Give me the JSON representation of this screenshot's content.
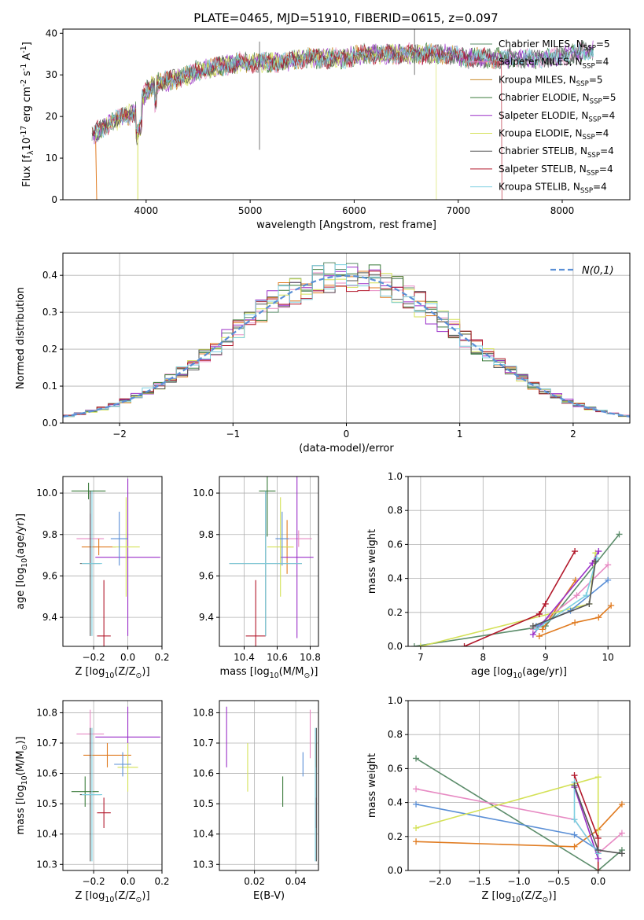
{
  "title": "PLATE=0465, MJD=51910, FIBERID=0615, z=0.097",
  "chart_data": [
    {
      "type": "line",
      "panel": "spectrum",
      "xlabel": "wavelength [Angstrom, rest frame]",
      "ylabel": "Flux [f$_\\lambda$10$^{-17}$ erg cm$^{-2}$ s$^{-1}$ A$^{-1}$]",
      "xlim": [
        3200,
        8650
      ],
      "ylim": [
        0,
        41
      ],
      "xticks": [
        4000,
        5000,
        6000,
        7000,
        8000
      ],
      "yticks": [
        0,
        10,
        20,
        30,
        40
      ],
      "legend_position": "upper-right",
      "series": [
        {
          "name": "Chabrier MILES, N$_{SSP}$=5",
          "color": "#5b8c6a"
        },
        {
          "name": "Salpeter MILES, N$_{SSP}$=4",
          "color": "#e78ac3"
        },
        {
          "name": "Kroupa MILES, N$_{SSP}$=5",
          "color": "#c98b2a"
        },
        {
          "name": "Chabrier ELODIE, N$_{SSP}$=5",
          "color": "#3a7a3a"
        },
        {
          "name": "Salpeter ELODIE, N$_{SSP}$=4",
          "color": "#9a2fc8"
        },
        {
          "name": "Kroupa ELODIE, N$_{SSP}$=4",
          "color": "#d4e157"
        },
        {
          "name": "Chabrier STELIB, N$_{SSP}$=4",
          "color": "#555555"
        },
        {
          "name": "Salpeter STELIB, N$_{SSP}$=4",
          "color": "#b2182b"
        },
        {
          "name": "Kroupa STELIB, N$_{SSP}$=4",
          "color": "#7ccfe0"
        }
      ],
      "spectrum_trend": {
        "x": [
          3500,
          3700,
          3900,
          4000,
          4100,
          4300,
          4500,
          4700,
          4900,
          5100,
          5300,
          5500,
          5700,
          5900,
          6100,
          6300,
          6500,
          6700,
          6900,
          7100,
          7300,
          7500,
          7700,
          7900,
          8100,
          8300
        ],
        "y": [
          16,
          19,
          21,
          26,
          28,
          29,
          31,
          32,
          33,
          33,
          33,
          34,
          34,
          34,
          35,
          35,
          35,
          35,
          35,
          34,
          34,
          34,
          34,
          34,
          35,
          36
        ]
      }
    },
    {
      "type": "histogram",
      "panel": "residuals",
      "xlabel": "(data-model)/error",
      "ylabel": "Normed distribution",
      "xlim": [
        -2.5,
        2.5
      ],
      "ylim": [
        0,
        0.46
      ],
      "xticks": [
        -2,
        -1,
        0,
        1,
        2
      ],
      "yticks": [
        0.0,
        0.1,
        0.2,
        0.3,
        0.4
      ],
      "grid": true,
      "legend_position": "upper-right",
      "reference_curve": {
        "name": "$\\mathcal{N}(0,1)$",
        "color": "#5a8fd6",
        "style": "dashed"
      },
      "bin_width": 0.1,
      "series_colors": [
        "#5b8c6a",
        "#e78ac3",
        "#e07b20",
        "#3a7a3a",
        "#9a2fc8",
        "#d4e157",
        "#555555",
        "#b2182b",
        "#7ccfe0"
      ]
    },
    {
      "type": "scatter",
      "panel": "age-vs-Z",
      "xlabel": "Z [log$_{10}$($Z/Z_\\odot$)]",
      "ylabel": "age  [log$_{10}$($age/yr$)]",
      "xlim": [
        -0.38,
        0.2
      ],
      "ylim": [
        9.26,
        10.08
      ],
      "xticks": [
        -0.2,
        0.0,
        0.2
      ],
      "yticks": [
        9.4,
        9.6,
        9.8,
        10.0
      ],
      "grid": true,
      "points": [
        {
          "x": -0.23,
          "y": 10.01,
          "xerr": 0.1,
          "yerr": 0.04,
          "color": "#3a7a3a"
        },
        {
          "x": -0.22,
          "y": 9.78,
          "xerr": 0.08,
          "yerr": 0.12,
          "color": "#e78ac3"
        },
        {
          "x": -0.17,
          "y": 9.74,
          "xerr": 0.1,
          "yerr": 0.04,
          "color": "#e07b20"
        },
        {
          "x": -0.14,
          "y": 9.31,
          "xerr": 0.04,
          "yerr": 0.27,
          "color": "#b2182b"
        },
        {
          "x": 0.0,
          "y": 9.69,
          "xerr": 0.19,
          "yerr": 0.38,
          "color": "#9a2fc8"
        },
        {
          "x": -0.01,
          "y": 9.74,
          "xerr": 0.08,
          "yerr": 0.24,
          "color": "#d4e157"
        },
        {
          "x": -0.05,
          "y": 9.78,
          "xerr": 0.05,
          "yerr": 0.13,
          "color": "#5a8fd6"
        },
        {
          "x": -0.22,
          "y": 9.66,
          "xerr": 0.06,
          "yerr": 0.35,
          "color": "#555555"
        },
        {
          "x": -0.21,
          "y": 9.66,
          "xerr": 0.06,
          "yerr": 0.35,
          "color": "#7ccfe0"
        }
      ]
    },
    {
      "type": "scatter",
      "panel": "age-vs-mass",
      "xlabel": "mass [log$_{10}$($M/M_\\odot$)]",
      "ylabel": "",
      "xlim": [
        10.25,
        10.85
      ],
      "ylim": [
        9.26,
        10.08
      ],
      "xticks": [
        10.4,
        10.6,
        10.8
      ],
      "yticks": [
        9.4,
        9.6,
        9.8,
        10.0
      ],
      "grid": true,
      "points": [
        {
          "x": 10.54,
          "y": 10.01,
          "xerr": 0.05,
          "yerr": 0.22,
          "color": "#3a7a3a"
        },
        {
          "x": 10.73,
          "y": 9.78,
          "xerr": 0.08,
          "yerr": 0.04,
          "color": "#e78ac3"
        },
        {
          "x": 10.66,
          "y": 9.74,
          "xerr": 0.04,
          "yerr": 0.13,
          "color": "#e07b20"
        },
        {
          "x": 10.47,
          "y": 9.31,
          "xerr": 0.06,
          "yerr": 0.27,
          "color": "#b2182b"
        },
        {
          "x": 10.72,
          "y": 9.69,
          "xerr": 0.1,
          "yerr": 0.39,
          "color": "#9a2fc8"
        },
        {
          "x": 10.62,
          "y": 9.74,
          "xerr": 0.08,
          "yerr": 0.24,
          "color": "#d4e157"
        },
        {
          "x": 10.63,
          "y": 9.78,
          "xerr": 0.04,
          "yerr": 0.13,
          "color": "#5a8fd6"
        },
        {
          "x": 10.53,
          "y": 9.66,
          "xerr": 0.22,
          "yerr": 0.35,
          "color": "#555555"
        },
        {
          "x": 10.53,
          "y": 9.66,
          "xerr": 0.22,
          "yerr": 0.35,
          "color": "#7ccfe0"
        }
      ]
    },
    {
      "type": "line",
      "panel": "massweight-vs-age",
      "xlabel": "age  [log$_{10}$($age/yr$)]",
      "ylabel": "mass weight",
      "xlim": [
        6.8,
        10.35
      ],
      "ylim": [
        0,
        1.0
      ],
      "xticks": [
        7,
        8,
        9,
        10
      ],
      "yticks": [
        0.0,
        0.2,
        0.4,
        0.6,
        0.8,
        1.0
      ],
      "grid": true,
      "series": [
        {
          "color": "#5b8c6a",
          "x": [
            6.9,
            9.0,
            10.18
          ],
          "y": [
            0.0,
            0.12,
            0.66
          ]
        },
        {
          "color": "#e78ac3",
          "x": [
            8.8,
            9.5,
            10.0
          ],
          "y": [
            0.1,
            0.3,
            0.48
          ]
        },
        {
          "color": "#e07b20",
          "x": [
            8.9,
            9.47,
            9.85,
            10.05
          ],
          "y": [
            0.06,
            0.14,
            0.17,
            0.24
          ]
        },
        {
          "color": "#e07b20",
          "x": [
            8.95,
            9.48
          ],
          "y": [
            0.1,
            0.39
          ]
        },
        {
          "color": "#d4e157",
          "x": [
            7.0,
            9.7,
            9.8
          ],
          "y": [
            0.0,
            0.25,
            0.55
          ]
        },
        {
          "color": "#5a8fd6",
          "x": [
            8.85,
            9.4,
            10.0
          ],
          "y": [
            0.12,
            0.21,
            0.39
          ]
        },
        {
          "color": "#9a2fc8",
          "x": [
            8.8,
            9.75,
            9.85
          ],
          "y": [
            0.07,
            0.49,
            0.56
          ]
        },
        {
          "color": "#b2182b",
          "x": [
            7.7,
            8.9,
            9.47
          ],
          "y": [
            0.0,
            0.19,
            0.56
          ]
        },
        {
          "color": "#b2182b",
          "x": [
            8.9,
            9.0
          ],
          "y": [
            0.19,
            0.25
          ]
        },
        {
          "color": "#7ccfe0",
          "x": [
            8.85,
            9.65,
            9.82
          ],
          "y": [
            0.1,
            0.3,
            0.52
          ]
        },
        {
          "color": "#555555",
          "x": [
            8.8,
            9.7,
            9.8
          ],
          "y": [
            0.12,
            0.25,
            0.5
          ]
        }
      ]
    },
    {
      "type": "scatter",
      "panel": "mass-vs-Z",
      "xlabel": "Z [log$_{10}$($Z/Z_\\odot$)]",
      "ylabel": "mass [log$_{10}$($M/M_\\odot$)]",
      "xlim": [
        -0.38,
        0.2
      ],
      "ylim": [
        10.28,
        10.84
      ],
      "xticks": [
        -0.2,
        0.0,
        0.2
      ],
      "yticks": [
        10.3,
        10.4,
        10.5,
        10.6,
        10.7,
        10.8
      ],
      "grid": true,
      "points": [
        {
          "x": -0.25,
          "y": 10.54,
          "xerr": 0.08,
          "yerr": 0.05,
          "color": "#3a7a3a"
        },
        {
          "x": -0.22,
          "y": 10.73,
          "xerr": 0.08,
          "yerr": 0.08,
          "color": "#e78ac3"
        },
        {
          "x": -0.12,
          "y": 10.66,
          "xerr": 0.14,
          "yerr": 0.04,
          "color": "#e07b20"
        },
        {
          "x": -0.14,
          "y": 10.47,
          "xerr": 0.04,
          "yerr": 0.05,
          "color": "#b2182b"
        },
        {
          "x": 0.0,
          "y": 10.72,
          "xerr": 0.19,
          "yerr": 0.1,
          "color": "#9a2fc8"
        },
        {
          "x": 0.0,
          "y": 10.62,
          "xerr": 0.06,
          "yerr": 0.08,
          "color": "#d4e157"
        },
        {
          "x": -0.03,
          "y": 10.63,
          "xerr": 0.05,
          "yerr": 0.04,
          "color": "#5a8fd6"
        },
        {
          "x": -0.22,
          "y": 10.53,
          "xerr": 0.06,
          "yerr": 0.22,
          "color": "#555555"
        },
        {
          "x": -0.21,
          "y": 10.53,
          "xerr": 0.06,
          "yerr": 0.22,
          "color": "#7ccfe0"
        }
      ]
    },
    {
      "type": "scatter",
      "panel": "mass-vs-EBV",
      "xlabel": "E(B-V)",
      "ylabel": "",
      "xlim": [
        0.003,
        0.051
      ],
      "ylim": [
        10.28,
        10.84
      ],
      "xticks": [
        0.02,
        0.04
      ],
      "yticks": [
        10.3,
        10.4,
        10.5,
        10.6,
        10.7,
        10.8
      ],
      "grid": true,
      "points": [
        {
          "x": 0.0337,
          "y": 10.54,
          "yerr": 0.05,
          "color": "#3a7a3a"
        },
        {
          "x": 0.047,
          "y": 10.73,
          "yerr": 0.08,
          "color": "#e78ac3"
        },
        {
          "x": 0.05,
          "y": 10.66,
          "yerr": 0.04,
          "color": "#e07b20"
        },
        {
          "x": 0.05,
          "y": 10.47,
          "yerr": 0.05,
          "color": "#b2182b"
        },
        {
          "x": 0.0065,
          "y": 10.72,
          "yerr": 0.1,
          "color": "#9a2fc8"
        },
        {
          "x": 0.0167,
          "y": 10.62,
          "yerr": 0.08,
          "color": "#d4e157"
        },
        {
          "x": 0.0435,
          "y": 10.63,
          "yerr": 0.04,
          "color": "#5a8fd6"
        },
        {
          "x": 0.05,
          "y": 10.53,
          "yerr": 0.22,
          "color": "#555555"
        },
        {
          "x": 0.0495,
          "y": 10.53,
          "yerr": 0.22,
          "color": "#7ccfe0"
        }
      ]
    },
    {
      "type": "line",
      "panel": "massweight-vs-Z",
      "xlabel": "Z [log$_{10}$($Z/Z_\\odot$)]",
      "ylabel": "mass weight",
      "xlim": [
        -2.4,
        0.4
      ],
      "ylim": [
        0,
        1.0
      ],
      "xticks": [
        -2.0,
        -1.5,
        -1.0,
        -0.5,
        0.0
      ],
      "yticks": [
        0.0,
        0.2,
        0.4,
        0.6,
        0.8,
        1.0
      ],
      "grid": true,
      "series": [
        {
          "color": "#5b8c6a",
          "x": [
            -2.3,
            0.0,
            0.3
          ],
          "y": [
            0.66,
            0.0,
            0.12
          ]
        },
        {
          "color": "#e78ac3",
          "x": [
            -2.3,
            -0.3,
            0.0,
            0.3
          ],
          "y": [
            0.48,
            0.3,
            0.1,
            0.22
          ]
        },
        {
          "color": "#e07b20",
          "x": [
            -2.3,
            -0.3,
            0.0,
            0.3
          ],
          "y": [
            0.17,
            0.14,
            0.24,
            0.39
          ]
        },
        {
          "color": "#5a8fd6",
          "x": [
            -2.3,
            -0.3,
            0.0
          ],
          "y": [
            0.39,
            0.21,
            0.12
          ]
        },
        {
          "color": "#d4e157",
          "x": [
            -2.3,
            0.0,
            0.0
          ],
          "y": [
            0.25,
            0.55,
            0.0
          ]
        },
        {
          "color": "#b2182b",
          "x": [
            -0.3,
            0.0,
            0.0
          ],
          "y": [
            0.56,
            0.19,
            0.0
          ]
        },
        {
          "color": "#9a2fc8",
          "x": [
            -0.3,
            0.0
          ],
          "y": [
            0.49,
            0.07
          ]
        },
        {
          "color": "#7ccfe0",
          "x": [
            -0.3,
            -0.3,
            0.0
          ],
          "y": [
            0.52,
            0.3,
            0.1
          ]
        },
        {
          "color": "#555555",
          "x": [
            -0.3,
            0.0,
            0.3
          ],
          "y": [
            0.5,
            0.12,
            0.1
          ]
        }
      ]
    }
  ]
}
